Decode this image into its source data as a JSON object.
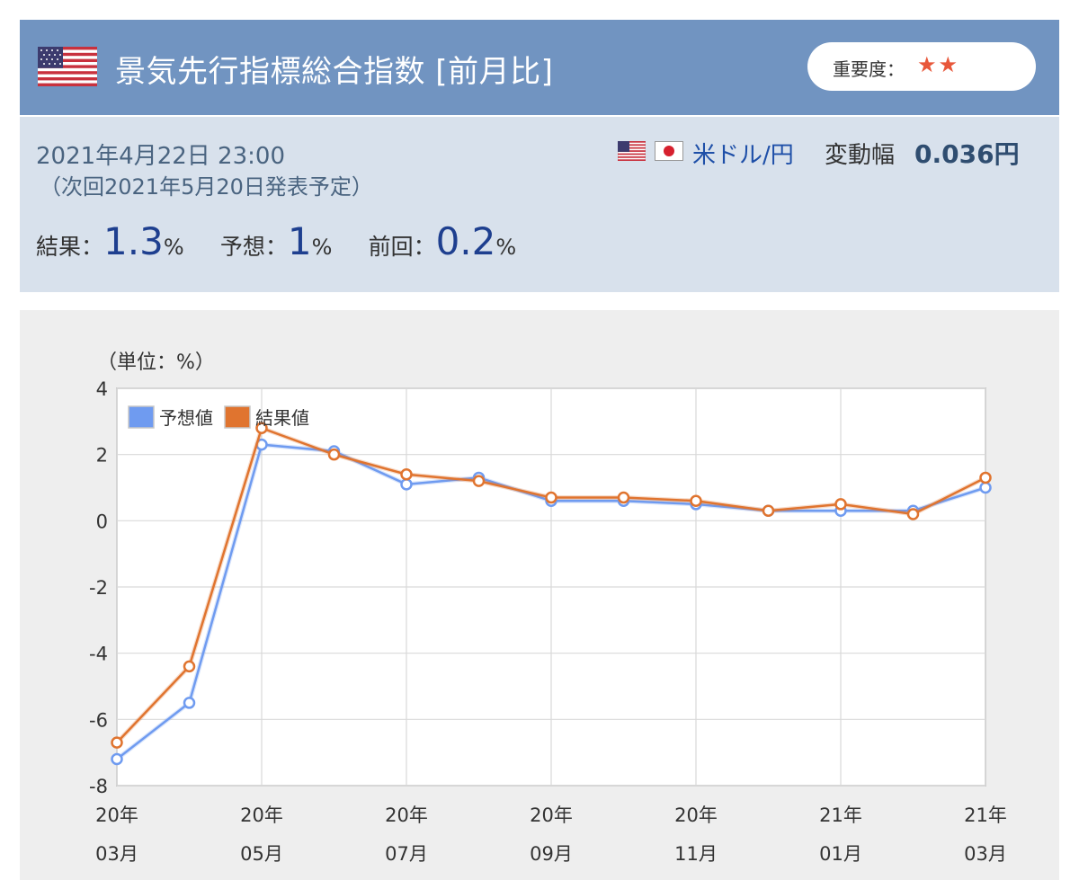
{
  "header": {
    "title": "景気先行指標総合指数 [前月比]",
    "importance_label": "重要度：",
    "importance_stars": "★★",
    "flag_icon": "us-flag-icon"
  },
  "info": {
    "datetime": "2021年4月22日 23:00",
    "next_release": "（次回2021年5月20日発表予定）",
    "pair": "米ドル/円",
    "change_label": "変動幅",
    "change_value": "0.036円",
    "result_label": "結果：",
    "result_value": "1.3",
    "forecast_label": "予想：",
    "forecast_value": "1",
    "previous_label": "前回：",
    "previous_value": "0.2",
    "unit": "%"
  },
  "colors": {
    "header_bg": "#7194c1",
    "info_bg": "#d8e1ec",
    "forecast_series": "#6f9bf0",
    "result_series": "#e0742f",
    "star": "#e8573a"
  },
  "chart_data": {
    "type": "line",
    "unit_label": "（単位：%）",
    "x": [
      "20年03月",
      "20年04月",
      "20年05月",
      "20年06月",
      "20年07月",
      "20年08月",
      "20年09月",
      "20年10月",
      "20年11月",
      "20年12月",
      "21年01月",
      "21年02月",
      "21年03月"
    ],
    "tick_labels": [
      {
        "line1": "20年",
        "line2": "03月"
      },
      {
        "line1": "20年",
        "line2": "05月"
      },
      {
        "line1": "20年",
        "line2": "07月"
      },
      {
        "line1": "20年",
        "line2": "09月"
      },
      {
        "line1": "20年",
        "line2": "11月"
      },
      {
        "line1": "21年",
        "line2": "01月"
      },
      {
        "line1": "21年",
        "line2": "03月"
      }
    ],
    "ylim": [
      -8,
      4
    ],
    "yticks": [
      4,
      2,
      0,
      -2,
      -4,
      -6,
      -8
    ],
    "grid": true,
    "legend_position": "top-left",
    "series": [
      {
        "name": "予想値",
        "color": "#6f9bf0",
        "values": [
          -7.2,
          -5.5,
          2.3,
          2.1,
          1.1,
          1.3,
          0.6,
          0.6,
          0.5,
          0.3,
          0.3,
          0.3,
          1.0
        ]
      },
      {
        "name": "結果値",
        "color": "#e0742f",
        "values": [
          -6.7,
          -4.4,
          2.8,
          2.0,
          1.4,
          1.2,
          0.7,
          0.7,
          0.6,
          0.3,
          0.5,
          0.2,
          1.3
        ]
      }
    ]
  }
}
